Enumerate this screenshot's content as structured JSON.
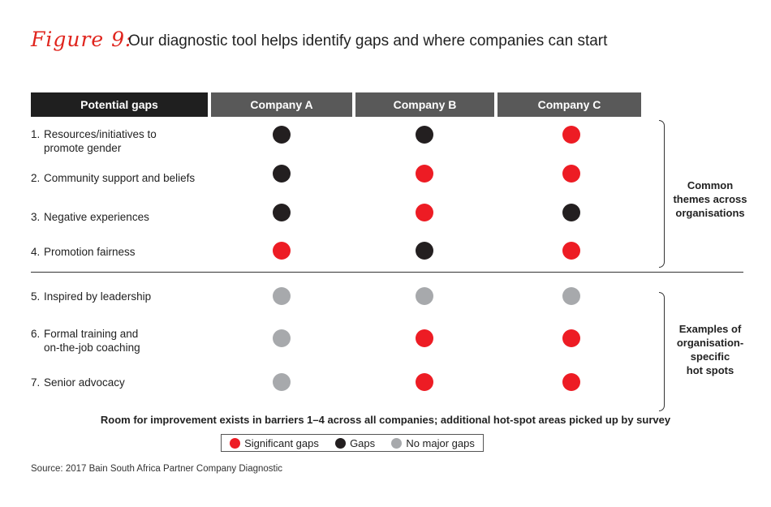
{
  "figure_label": "Figure 9:",
  "title": "Our diagnostic tool helps identify gaps and where companies can start",
  "headers": {
    "gaps": "Potential gaps",
    "a": "Company A",
    "b": "Company B",
    "c": "Company C"
  },
  "rows": [
    {
      "num": "1.",
      "line1": "Resources/initiatives to",
      "line2": "promote gender",
      "a": "black",
      "b": "black",
      "c": "red"
    },
    {
      "num": "2.",
      "line1": "Community support and beliefs",
      "line2": "",
      "a": "black",
      "b": "red",
      "c": "red"
    },
    {
      "num": "3.",
      "line1": "Negative experiences",
      "line2": "",
      "a": "black",
      "b": "red",
      "c": "black"
    },
    {
      "num": "4.",
      "line1": "Promotion fairness",
      "line2": "",
      "a": "red",
      "b": "black",
      "c": "red"
    },
    {
      "num": "5.",
      "line1": "Inspired by leadership",
      "line2": "",
      "a": "gray",
      "b": "gray",
      "c": "gray"
    },
    {
      "num": "6.",
      "line1": "Formal training and",
      "line2": "on-the-job coaching",
      "a": "gray",
      "b": "red",
      "c": "red"
    },
    {
      "num": "7.",
      "line1": "Senior advocacy",
      "line2": "",
      "a": "gray",
      "b": "red",
      "c": "red"
    }
  ],
  "groups": {
    "common": [
      "Common",
      "themes across",
      "organisations"
    ],
    "hotspots": [
      "Examples of",
      "organisation-",
      "specific",
      "hot spots"
    ]
  },
  "note": "Room for improvement exists in barriers 1–4 across all companies; additional hot-spot areas picked up by survey",
  "legend": {
    "significant": "Significant gaps",
    "gaps": "Gaps",
    "none": "No major gaps"
  },
  "colors": {
    "red": "#ed1c24",
    "black": "#231f20",
    "gray": "#a7a9ac",
    "header_dark": "#1f1f1f",
    "header_mid": "#595959"
  },
  "source": "Source:  2017 Bain South Africa Partner Company Diagnostic"
}
